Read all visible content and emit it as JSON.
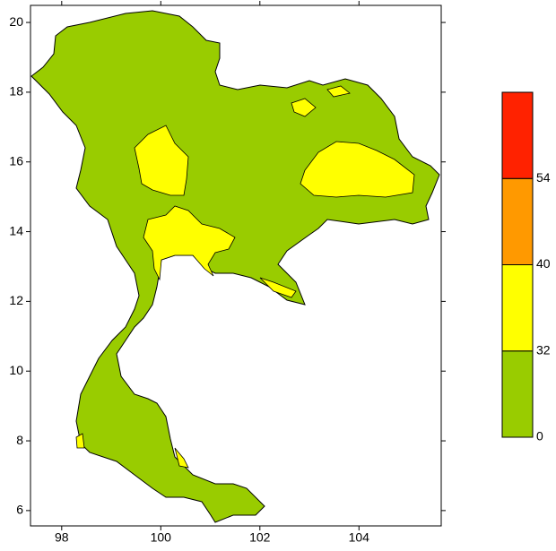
{
  "map": {
    "xlim": [
      97.37,
      105.66
    ],
    "ylim": [
      5.56,
      20.49
    ],
    "xticks": [
      98,
      100,
      102,
      104
    ],
    "yticks": [
      6,
      8,
      10,
      12,
      14,
      16,
      18,
      20
    ],
    "legend": {
      "levels": [
        0,
        32,
        40,
        54
      ],
      "colors": [
        "#99cc00",
        "#ffff00",
        "#ff9900",
        "#ff2200"
      ]
    }
  }
}
